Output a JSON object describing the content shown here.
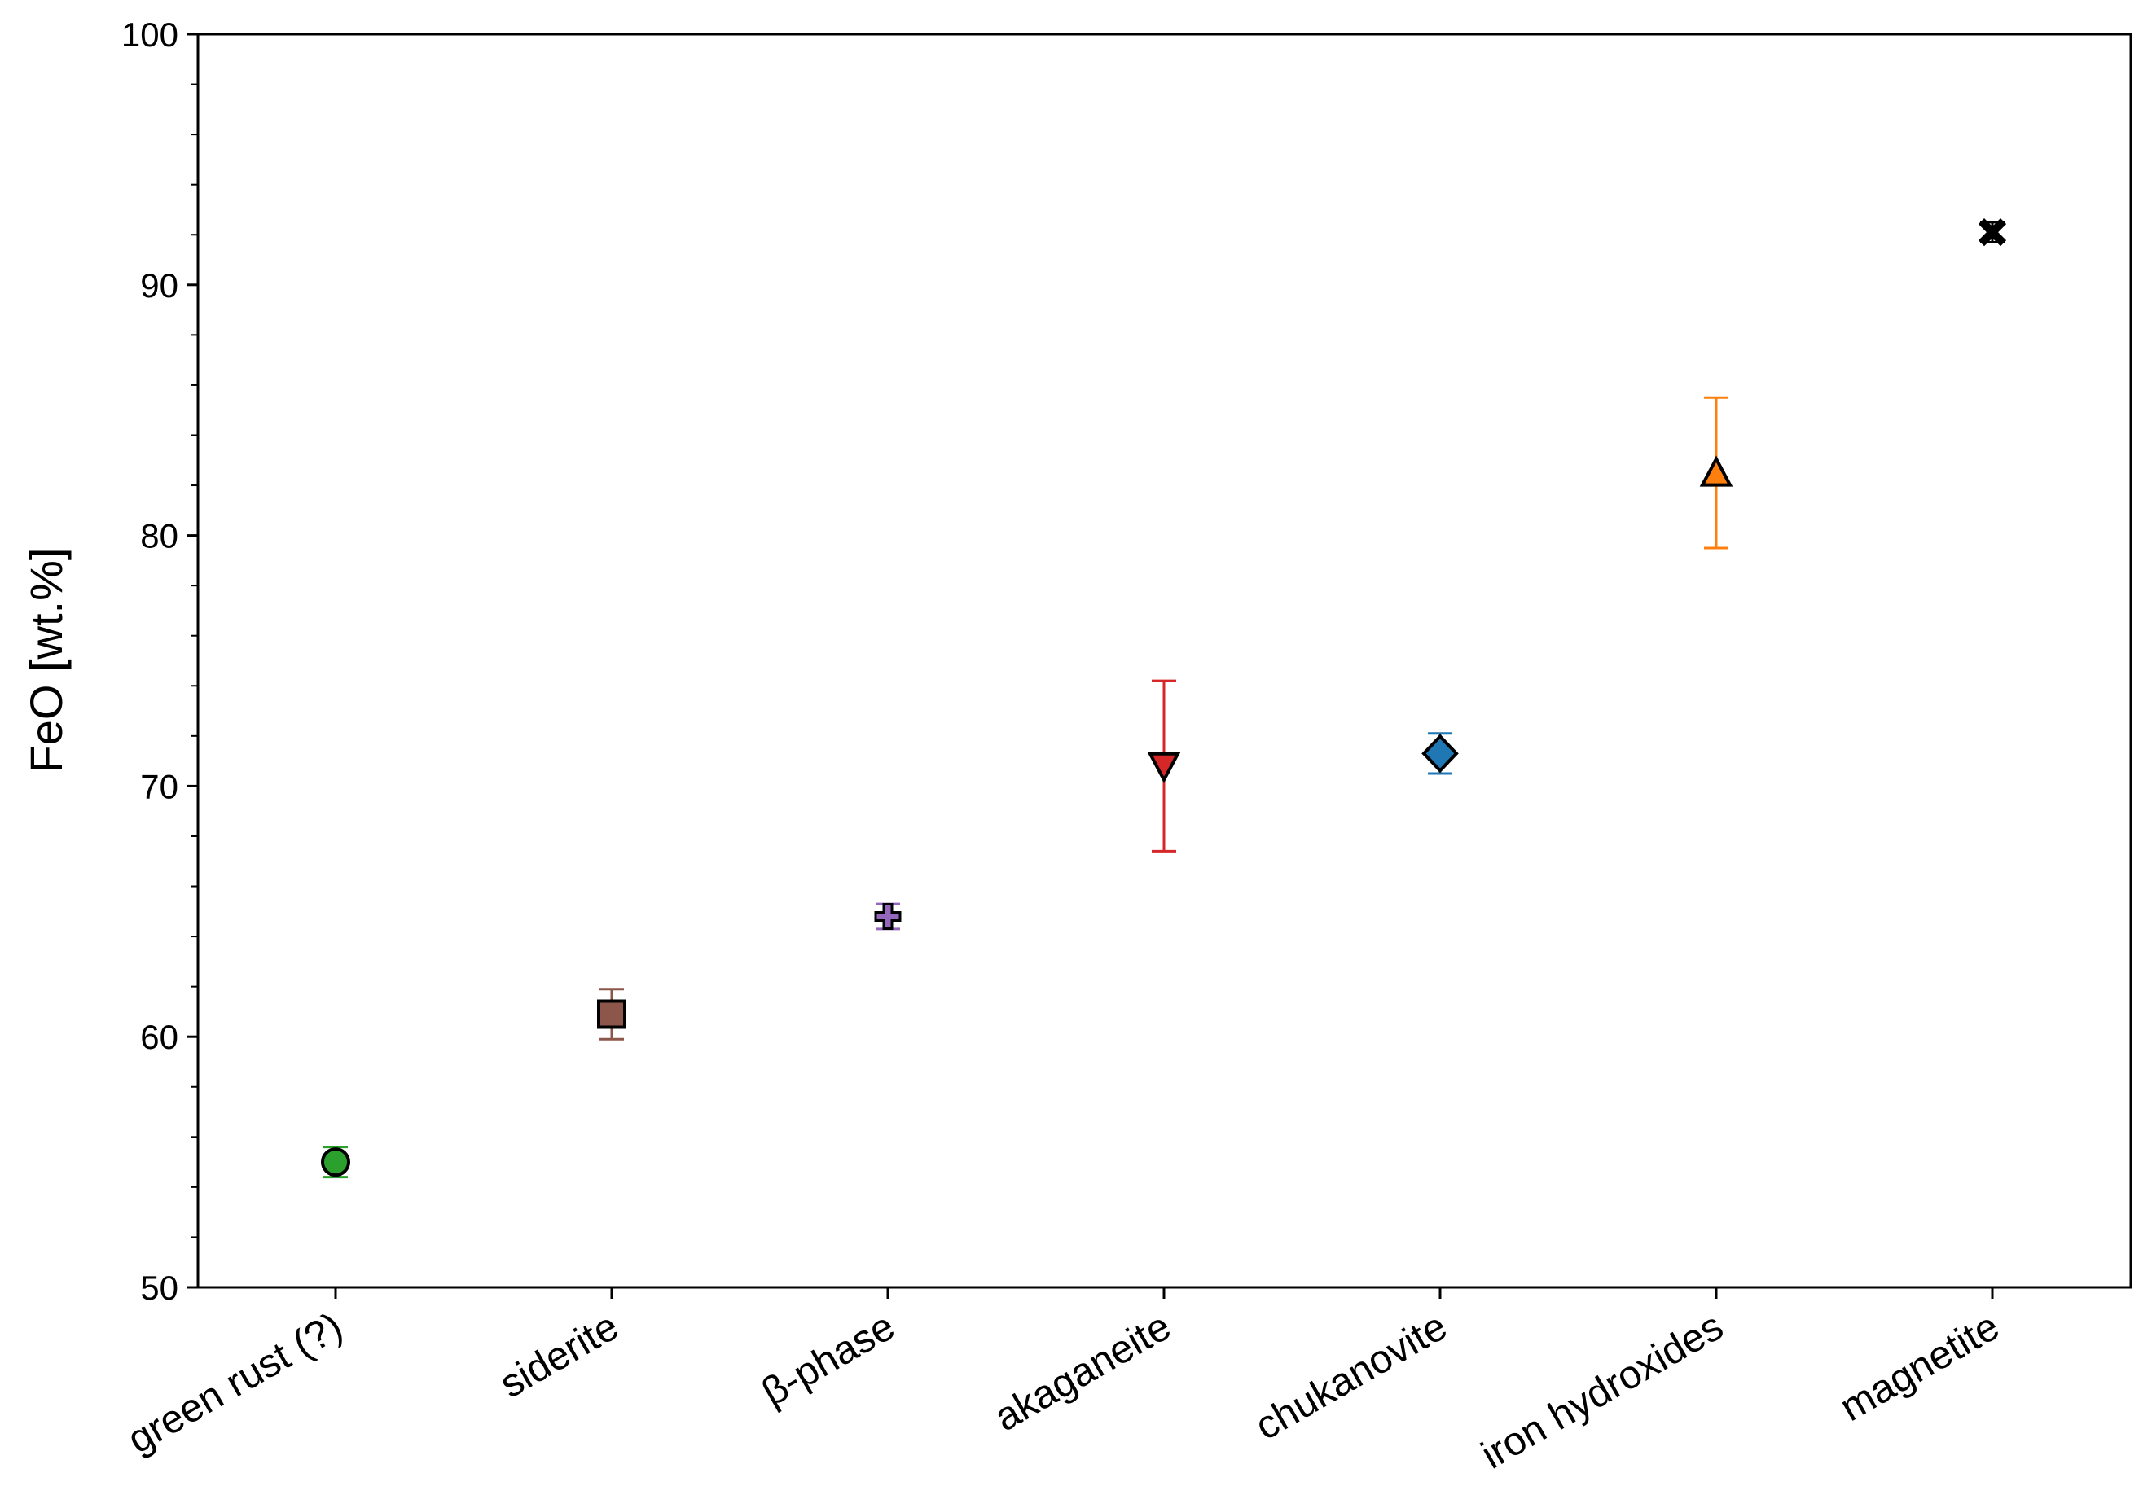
{
  "chart_data": {
    "type": "scatter",
    "ylabel": "FeO [wt.%]",
    "xlabel": "",
    "ylim": [
      50,
      100
    ],
    "yticks": [
      50,
      60,
      70,
      80,
      90,
      100
    ],
    "y_minor_step": 2,
    "grid": false,
    "categories": [
      "green rust (?)",
      "siderite",
      "β-phase",
      "akaganeite",
      "chukanovite",
      "iron hydroxides",
      "magnetite"
    ],
    "points": [
      {
        "category": "green rust (?)",
        "value": 55.0,
        "error": 0.6,
        "marker": "circle",
        "color": "#2ca02c"
      },
      {
        "category": "siderite",
        "value": 60.9,
        "error": 1.0,
        "marker": "square",
        "color": "#8c564b"
      },
      {
        "category": "β-phase",
        "value": 64.8,
        "error": 0.5,
        "marker": "plus",
        "color": "#9467bd"
      },
      {
        "category": "akaganeite",
        "value": 70.8,
        "error": 3.4,
        "marker": "triangle-down",
        "color": "#d62728"
      },
      {
        "category": "chukanovite",
        "value": 71.3,
        "error": 0.8,
        "marker": "diamond",
        "color": "#1f77b4"
      },
      {
        "category": "iron hydroxides",
        "value": 82.5,
        "error": 3.0,
        "marker": "triangle-up",
        "color": "#ff7f0e"
      },
      {
        "category": "magnetite",
        "value": 92.1,
        "error": 0.4,
        "marker": "x",
        "color": "#000000"
      }
    ]
  }
}
